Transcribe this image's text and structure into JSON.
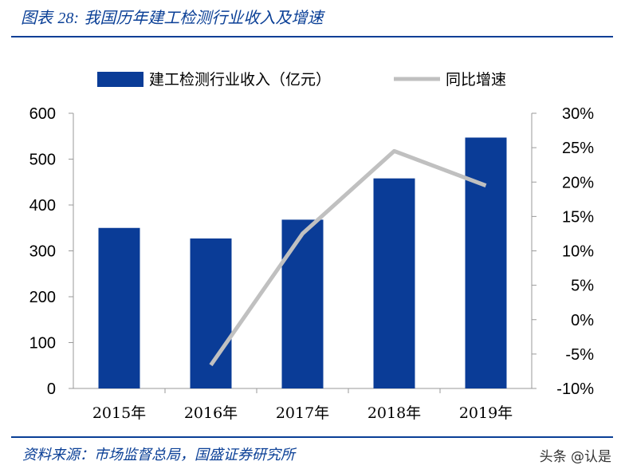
{
  "header": {
    "title_prefix": "图表",
    "title_number": "28:",
    "title_text": "我国历年建工检测行业收入及增速"
  },
  "footer": {
    "source": "资料来源：市场监督总局，国盛证券研究所",
    "watermark": "头条 @认是"
  },
  "colors": {
    "bar": "#0a3c97",
    "line": "#c0c0c0",
    "accent": "#0a3f96"
  },
  "chart_data": {
    "type": "bar",
    "categories": [
      "2015年",
      "2016年",
      "2017年",
      "2018年",
      "2019年"
    ],
    "series": [
      {
        "name": "建工检测行业收入（亿元）",
        "type": "bar",
        "axis": "left",
        "values": [
          350,
          327,
          368,
          458,
          547
        ]
      },
      {
        "name": "同比增速",
        "type": "line",
        "axis": "right",
        "values": [
          null,
          -6.6,
          12.5,
          24.5,
          19.5
        ]
      }
    ],
    "left_axis": {
      "ylim": [
        0,
        600
      ],
      "ticks": [
        "0",
        "100",
        "200",
        "300",
        "400",
        "500",
        "600"
      ]
    },
    "right_axis": {
      "ylim": [
        -10,
        30
      ],
      "ticks": [
        "-10%",
        "-5%",
        "0%",
        "5%",
        "10%",
        "15%",
        "20%",
        "25%",
        "30%"
      ]
    },
    "legend": "top",
    "grid": false
  }
}
